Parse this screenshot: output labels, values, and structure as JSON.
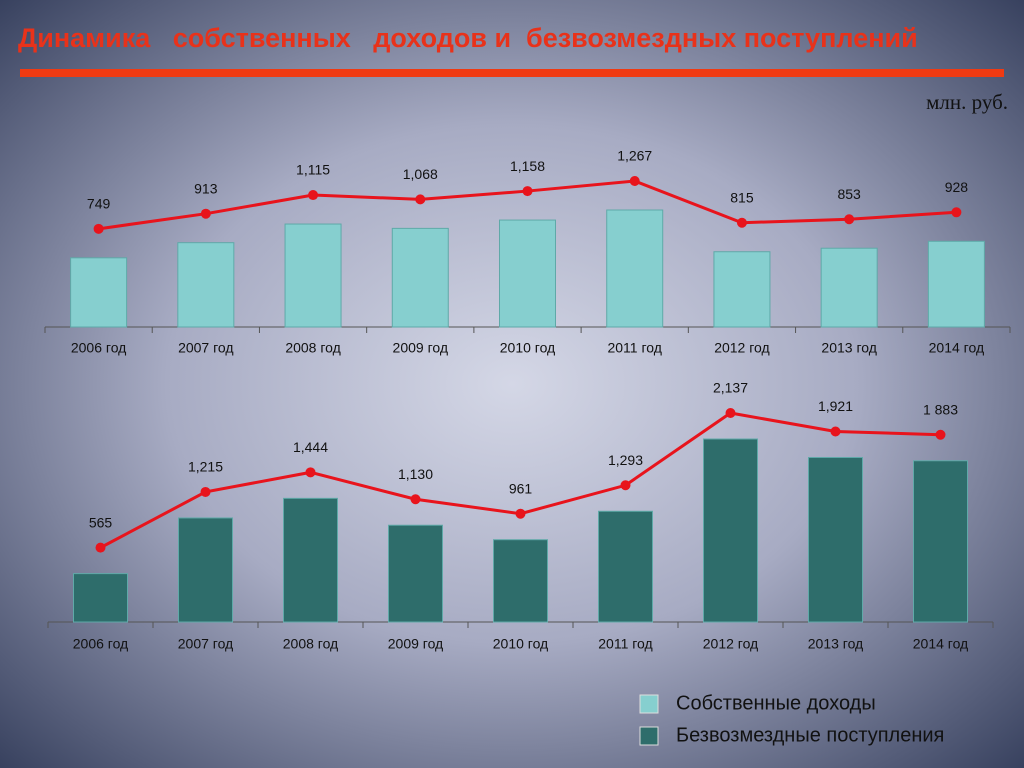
{
  "title": "Динамика   собственных   доходов и  безвозмездных поступлений",
  "unit": "млн. руб.",
  "chart_data": [
    {
      "type": "bar",
      "categories": [
        "2006 год",
        "2007 год",
        "2008 год",
        "2009 год",
        "2010 год",
        "2011 год",
        "2012 год",
        "2013 год",
        "2014 год"
      ],
      "series": [
        {
          "name": "Собственные доходы",
          "color": "#86cfcf",
          "line_color": "#e8141c",
          "values": [
            749,
            913,
            1115,
            1068,
            1158,
            1267,
            815,
            853,
            928
          ],
          "value_labels": [
            "749",
            "913",
            "1,115",
            "1,068",
            "1,158",
            "1,267",
            "815",
            "853",
            "928"
          ]
        }
      ]
    },
    {
      "type": "bar",
      "categories": [
        "2006 год",
        "2007 год",
        "2008 год",
        "2009 год",
        "2010 год",
        "2011 год",
        "2012 год",
        "2013 год",
        "2014 год"
      ],
      "series": [
        {
          "name": "Безвозмездные поступления",
          "color": "#2e6d6b",
          "line_color": "#e8141c",
          "values": [
            565,
            1215,
            1444,
            1130,
            961,
            1293,
            2137,
            1921,
            1883
          ],
          "value_labels": [
            "565",
            "1,215",
            "1,444",
            "1,130",
            "961",
            "1,293",
            "2,137",
            "1,921",
            "1 883"
          ]
        }
      ]
    }
  ]
}
